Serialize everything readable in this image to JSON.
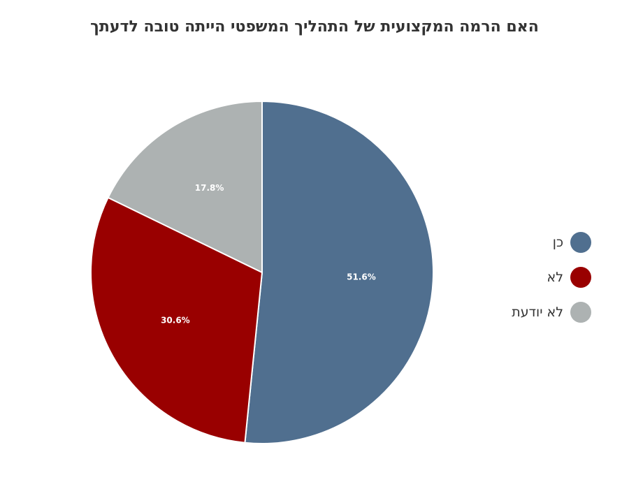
{
  "chart_data": {
    "type": "pie",
    "title": "האם הרמה המקצועית של התהליך המשפטי הייתה טובה לדעתך",
    "categories": [
      "כן",
      "לא",
      "לא יודעת"
    ],
    "values": [
      51.6,
      30.6,
      17.8
    ],
    "labels": [
      "51.6%",
      "30.6%",
      "17.8%"
    ],
    "colors": [
      "#506f8f",
      "#990000",
      "#adb2b2"
    ],
    "legend_position": "right"
  }
}
